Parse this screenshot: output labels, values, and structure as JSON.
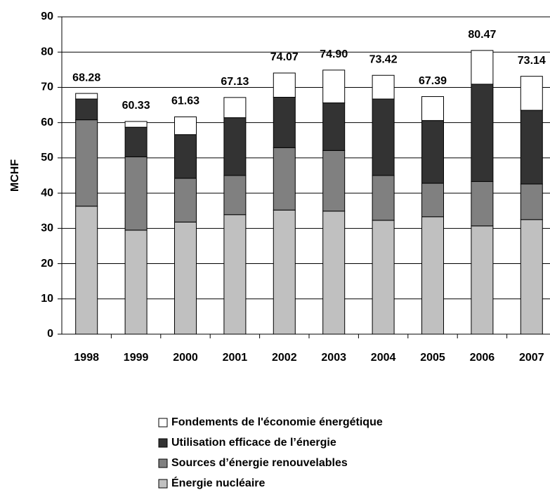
{
  "chart_data": {
    "type": "stacked_bar",
    "y_label": "MCHF",
    "categories": [
      "1998",
      "1999",
      "2000",
      "2001",
      "2002",
      "2003",
      "2004",
      "2005",
      "2006",
      "2007"
    ],
    "series": [
      {
        "name": "Énergie nucléaire",
        "color": "#c0c0c0",
        "values": [
          36.3,
          29.5,
          31.8,
          33.9,
          35.2,
          34.9,
          32.3,
          33.3,
          30.7,
          32.5
        ]
      },
      {
        "name": "Sources d’énergie renouvelables",
        "color": "#808080",
        "values": [
          24.5,
          20.8,
          12.4,
          11.1,
          17.7,
          17.2,
          12.7,
          9.5,
          12.6,
          10.1
        ]
      },
      {
        "name": "Utilisation efficace de l’énergie",
        "color": "#333333",
        "values": [
          5.9,
          8.4,
          12.4,
          16.4,
          14.3,
          13.5,
          21.7,
          17.8,
          27.6,
          20.9
        ]
      },
      {
        "name": "Fondements de l'économie énergétique",
        "color": "#ffffff",
        "values": [
          1.58,
          1.63,
          5.03,
          5.73,
          6.87,
          9.3,
          6.72,
          6.79,
          9.57,
          9.64
        ]
      }
    ],
    "total_labels": [
      "68.28",
      "60.33",
      "61.63",
      "67.13",
      "74.07",
      "74.90",
      "73.42",
      "67.39",
      "80.47",
      "73.14"
    ],
    "ylim": [
      0,
      90
    ],
    "yticks": [
      0,
      10,
      20,
      30,
      40,
      50,
      60,
      70,
      80,
      90
    ],
    "grid": true
  }
}
